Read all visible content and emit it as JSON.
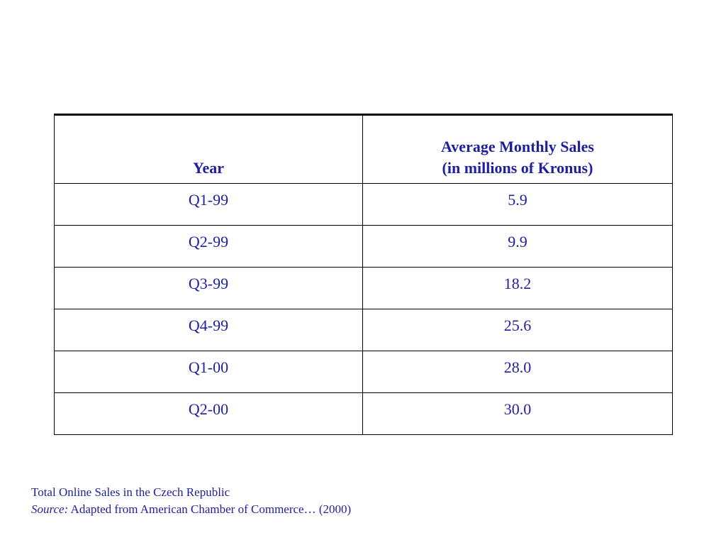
{
  "chart_data": {
    "type": "table",
    "columns": [
      "Year",
      "Average Monthly Sales\n(in millions of Kronus)"
    ],
    "header": {
      "year": "Year",
      "sales_line1": "Average Monthly Sales",
      "sales_line2": "(in millions of Kronus)"
    },
    "rows": [
      {
        "year": "Q1-99",
        "sales": "5.9"
      },
      {
        "year": "Q2-99",
        "sales": "9.9"
      },
      {
        "year": "Q3-99",
        "sales": "18.2"
      },
      {
        "year": "Q4-99",
        "sales": "25.6"
      },
      {
        "year": "Q1-00",
        "sales": "28.0"
      },
      {
        "year": "Q2-00",
        "sales": "30.0"
      }
    ],
    "categories": [
      "Q1-99",
      "Q2-99",
      "Q3-99",
      "Q4-99",
      "Q1-00",
      "Q2-00"
    ],
    "values": [
      5.9,
      9.9,
      18.2,
      25.6,
      28.0,
      30.0
    ]
  },
  "caption": {
    "title": "Total Online Sales in the Czech Republic",
    "source_label": "Source:",
    "source_text": " Adapted from American Chamber of Commerce… (2000)"
  },
  "colors": {
    "text": "#1f1f9e",
    "border": "#000000",
    "background": "#ffffff"
  }
}
